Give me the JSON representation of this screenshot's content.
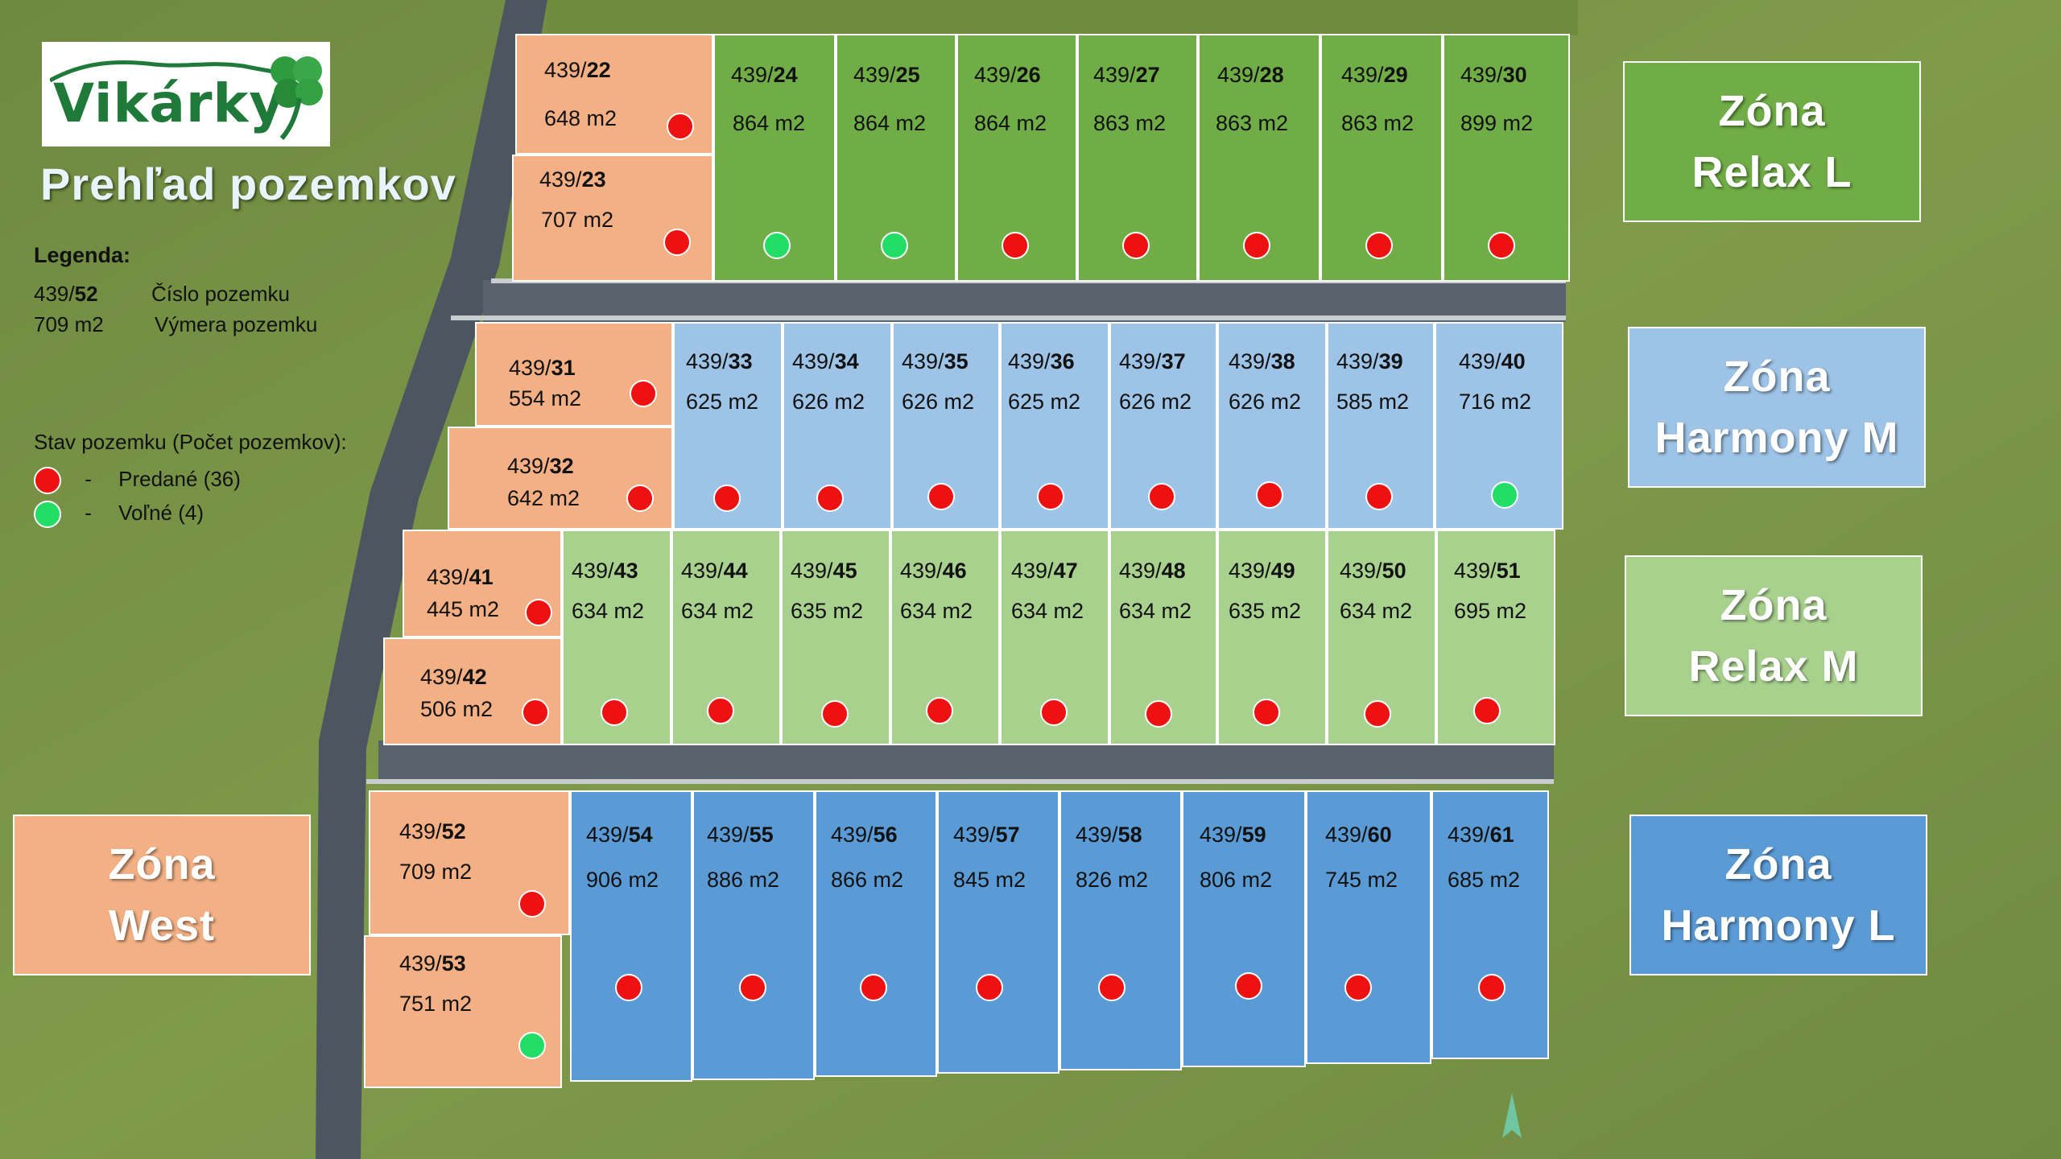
{
  "brand": {
    "logo_text": "Vikárky"
  },
  "title": "Prehľad pozemkov",
  "legend": {
    "title": "Legenda:",
    "example_number_prefix": "439/",
    "example_number_suffix": "52",
    "example_number_desc": "Číslo pozemku",
    "example_area": "709 m2",
    "example_area_desc": "Výmera pozemku",
    "status_title": "Stav pozemku (Počet pozemkov):",
    "sold_label": "Predané (36)",
    "free_label": "Voľné (4)",
    "dash": "-"
  },
  "colors": {
    "west": "#f3b084",
    "relax_l": "#70ad47",
    "harmony_m": "#9dc3e6",
    "relax_m": "#a9d18e",
    "harmony_l": "#5b9bd5",
    "sold": "#ee1111",
    "free": "#22dd66"
  },
  "zones": [
    {
      "id": "relax-l",
      "line1": "Zóna",
      "line2": "Relax L"
    },
    {
      "id": "harmony-m",
      "line1": "Zóna",
      "line2": "Harmony M"
    },
    {
      "id": "relax-m",
      "line1": "Zóna",
      "line2": "Relax M"
    },
    {
      "id": "harmony-l",
      "line1": "Zóna",
      "line2": "Harmony L"
    },
    {
      "id": "west",
      "line1": "Zóna",
      "line2": "West"
    }
  ],
  "plots": [
    {
      "prefix": "439/",
      "num": "22",
      "area": "648 m2",
      "status": "sold",
      "zone": "west"
    },
    {
      "prefix": "439/",
      "num": "23",
      "area": "707 m2",
      "status": "sold",
      "zone": "west"
    },
    {
      "prefix": "439/",
      "num": "24",
      "area": "864 m2",
      "status": "free",
      "zone": "relax_l"
    },
    {
      "prefix": "439/",
      "num": "25",
      "area": "864 m2",
      "status": "free",
      "zone": "relax_l"
    },
    {
      "prefix": "439/",
      "num": "26",
      "area": "864 m2",
      "status": "sold",
      "zone": "relax_l"
    },
    {
      "prefix": "439/",
      "num": "27",
      "area": "863 m2",
      "status": "sold",
      "zone": "relax_l"
    },
    {
      "prefix": "439/",
      "num": "28",
      "area": "863 m2",
      "status": "sold",
      "zone": "relax_l"
    },
    {
      "prefix": "439/",
      "num": "29",
      "area": "863 m2",
      "status": "sold",
      "zone": "relax_l"
    },
    {
      "prefix": "439/",
      "num": "30",
      "area": "899 m2",
      "status": "sold",
      "zone": "relax_l"
    },
    {
      "prefix": "439/",
      "num": "31",
      "area": "554 m2",
      "status": "sold",
      "zone": "west"
    },
    {
      "prefix": "439/",
      "num": "32",
      "area": "642 m2",
      "status": "sold",
      "zone": "west"
    },
    {
      "prefix": "439/",
      "num": "33",
      "area": "625 m2",
      "status": "sold",
      "zone": "harmony_m"
    },
    {
      "prefix": "439/",
      "num": "34",
      "area": "626 m2",
      "status": "sold",
      "zone": "harmony_m"
    },
    {
      "prefix": "439/",
      "num": "35",
      "area": "626 m2",
      "status": "sold",
      "zone": "harmony_m"
    },
    {
      "prefix": "439/",
      "num": "36",
      "area": "625 m2",
      "status": "sold",
      "zone": "harmony_m"
    },
    {
      "prefix": "439/",
      "num": "37",
      "area": "626 m2",
      "status": "sold",
      "zone": "harmony_m"
    },
    {
      "prefix": "439/",
      "num": "38",
      "area": "626 m2",
      "status": "sold",
      "zone": "harmony_m"
    },
    {
      "prefix": "439/",
      "num": "39",
      "area": "585 m2",
      "status": "sold",
      "zone": "harmony_m"
    },
    {
      "prefix": "439/",
      "num": "40",
      "area": "716 m2",
      "status": "free",
      "zone": "harmony_m"
    },
    {
      "prefix": "439/",
      "num": "41",
      "area": "445 m2",
      "status": "sold",
      "zone": "west"
    },
    {
      "prefix": "439/",
      "num": "42",
      "area": "506 m2",
      "status": "sold",
      "zone": "west"
    },
    {
      "prefix": "439/",
      "num": "43",
      "area": "634 m2",
      "status": "sold",
      "zone": "relax_m"
    },
    {
      "prefix": "439/",
      "num": "44",
      "area": "634 m2",
      "status": "sold",
      "zone": "relax_m"
    },
    {
      "prefix": "439/",
      "num": "45",
      "area": "635 m2",
      "status": "sold",
      "zone": "relax_m"
    },
    {
      "prefix": "439/",
      "num": "46",
      "area": "634 m2",
      "status": "sold",
      "zone": "relax_m"
    },
    {
      "prefix": "439/",
      "num": "47",
      "area": "634 m2",
      "status": "sold",
      "zone": "relax_m"
    },
    {
      "prefix": "439/",
      "num": "48",
      "area": "634 m2",
      "status": "sold",
      "zone": "relax_m"
    },
    {
      "prefix": "439/",
      "num": "49",
      "area": "635 m2",
      "status": "sold",
      "zone": "relax_m"
    },
    {
      "prefix": "439/",
      "num": "50",
      "area": "634 m2",
      "status": "sold",
      "zone": "relax_m"
    },
    {
      "prefix": "439/",
      "num": "51",
      "area": "695 m2",
      "status": "sold",
      "zone": "relax_m"
    },
    {
      "prefix": "439/",
      "num": "52",
      "area": "709 m2",
      "status": "sold",
      "zone": "west"
    },
    {
      "prefix": "439/",
      "num": "53",
      "area": "751 m2",
      "status": "free",
      "zone": "west"
    },
    {
      "prefix": "439/",
      "num": "54",
      "area": "906 m2",
      "status": "sold",
      "zone": "harmony_l"
    },
    {
      "prefix": "439/",
      "num": "55",
      "area": "886 m2",
      "status": "sold",
      "zone": "harmony_l"
    },
    {
      "prefix": "439/",
      "num": "56",
      "area": "866 m2",
      "status": "sold",
      "zone": "harmony_l"
    },
    {
      "prefix": "439/",
      "num": "57",
      "area": "845 m2",
      "status": "sold",
      "zone": "harmony_l"
    },
    {
      "prefix": "439/",
      "num": "58",
      "area": "826 m2",
      "status": "sold",
      "zone": "harmony_l"
    },
    {
      "prefix": "439/",
      "num": "59",
      "area": "806 m2",
      "status": "sold",
      "zone": "harmony_l"
    },
    {
      "prefix": "439/",
      "num": "60",
      "area": "745 m2",
      "status": "sold",
      "zone": "harmony_l"
    },
    {
      "prefix": "439/",
      "num": "61",
      "area": "685 m2",
      "status": "sold",
      "zone": "harmony_l"
    }
  ],
  "north_marker": "N"
}
